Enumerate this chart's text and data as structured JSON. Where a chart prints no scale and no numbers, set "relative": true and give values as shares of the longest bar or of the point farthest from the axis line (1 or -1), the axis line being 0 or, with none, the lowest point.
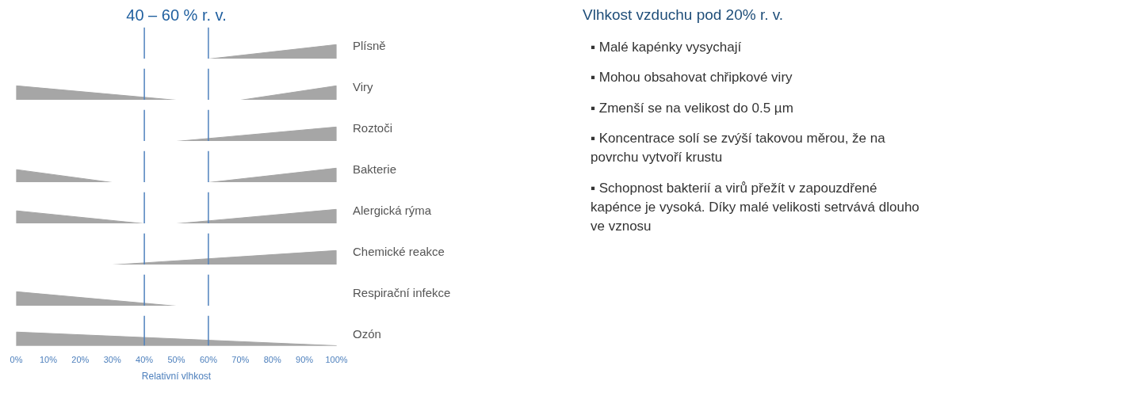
{
  "chart_data": [
    {
      "type": "area",
      "relative": true,
      "title": "40 – 60 % r. v.",
      "xlim": [
        0,
        100
      ],
      "tick_labels": false,
      "ref_lines": [
        {
          "axis": "x",
          "value": 40,
          "color": "#4f81bd"
        },
        {
          "axis": "x",
          "value": 60,
          "color": "#4f81bd"
        }
      ],
      "series": [
        {
          "name": "Plísně",
          "color": "#a6a6a6",
          "x": [
            0,
            60,
            100
          ],
          "values": [
            0,
            0,
            1
          ]
        }
      ]
    },
    {
      "type": "area",
      "relative": true,
      "xlim": [
        0,
        100
      ],
      "tick_labels": false,
      "ref_lines": [
        {
          "axis": "x",
          "value": 40,
          "color": "#4f81bd"
        },
        {
          "axis": "x",
          "value": 60,
          "color": "#4f81bd"
        }
      ],
      "series": [
        {
          "name": "Viry",
          "color": "#a6a6a6",
          "x": [
            0,
            50,
            70,
            100
          ],
          "values": [
            1,
            0,
            0,
            1
          ]
        }
      ]
    },
    {
      "type": "area",
      "relative": true,
      "xlim": [
        0,
        100
      ],
      "tick_labels": false,
      "ref_lines": [
        {
          "axis": "x",
          "value": 40,
          "color": "#4f81bd"
        },
        {
          "axis": "x",
          "value": 60,
          "color": "#4f81bd"
        }
      ],
      "series": [
        {
          "name": "Roztoči",
          "color": "#a6a6a6",
          "x": [
            0,
            50,
            100
          ],
          "values": [
            0,
            0,
            1
          ]
        }
      ]
    },
    {
      "type": "area",
      "relative": true,
      "xlim": [
        0,
        100
      ],
      "tick_labels": false,
      "ref_lines": [
        {
          "axis": "x",
          "value": 40,
          "color": "#4f81bd"
        },
        {
          "axis": "x",
          "value": 60,
          "color": "#4f81bd"
        }
      ],
      "series": [
        {
          "name": "Bakterie",
          "color": "#a6a6a6",
          "x": [
            0,
            30,
            60,
            100
          ],
          "values": [
            0.9,
            0,
            0,
            1
          ]
        }
      ]
    },
    {
      "type": "area",
      "relative": true,
      "xlim": [
        0,
        100
      ],
      "tick_labels": false,
      "ref_lines": [
        {
          "axis": "x",
          "value": 40,
          "color": "#4f81bd"
        },
        {
          "axis": "x",
          "value": 60,
          "color": "#4f81bd"
        }
      ],
      "series": [
        {
          "name": "Alergická rýma",
          "color": "#a6a6a6",
          "x": [
            0,
            40,
            50,
            100
          ],
          "values": [
            0.9,
            0,
            0,
            1
          ]
        }
      ]
    },
    {
      "type": "area",
      "relative": true,
      "xlim": [
        0,
        100
      ],
      "tick_labels": false,
      "ref_lines": [
        {
          "axis": "x",
          "value": 40,
          "color": "#4f81bd"
        },
        {
          "axis": "x",
          "value": 60,
          "color": "#4f81bd"
        }
      ],
      "series": [
        {
          "name": "Chemické reakce",
          "color": "#a6a6a6",
          "x": [
            0,
            30,
            100
          ],
          "values": [
            0,
            0,
            1
          ]
        }
      ]
    },
    {
      "type": "area",
      "relative": true,
      "xlim": [
        0,
        100
      ],
      "tick_labels": false,
      "ref_lines": [
        {
          "axis": "x",
          "value": 40,
          "color": "#4f81bd"
        },
        {
          "axis": "x",
          "value": 60,
          "color": "#4f81bd"
        }
      ],
      "series": [
        {
          "name": "Respirační infekce",
          "color": "#a6a6a6",
          "x": [
            0,
            50,
            100
          ],
          "values": [
            1,
            0,
            0
          ]
        }
      ]
    },
    {
      "type": "area",
      "relative": true,
      "xlim": [
        0,
        100
      ],
      "tick_labels": "x",
      "xlabel": "Relativní vlhkost",
      "ref_lines": [
        {
          "axis": "x",
          "value": 40,
          "color": "#4f81bd"
        },
        {
          "axis": "x",
          "value": 60,
          "color": "#4f81bd"
        }
      ],
      "xticks": [
        {
          "value": 0,
          "label": "0%"
        },
        {
          "value": 10,
          "label": "10%"
        },
        {
          "value": 20,
          "label": "20%"
        },
        {
          "value": 30,
          "label": "30%"
        },
        {
          "value": 40,
          "label": "40%"
        },
        {
          "value": 50,
          "label": "50%"
        },
        {
          "value": 60,
          "label": "60%"
        },
        {
          "value": 70,
          "label": "70%"
        },
        {
          "value": 80,
          "label": "80%"
        },
        {
          "value": 90,
          "label": "90%"
        },
        {
          "value": 100,
          "label": "100%"
        }
      ],
      "series": [
        {
          "name": "Ozón",
          "color": "#a6a6a6",
          "x": [
            0,
            100
          ],
          "values": [
            1,
            0
          ]
        }
      ]
    },
    {
      "type": "other",
      "title": "Vlhkost vzduchu pod 20% r. v.",
      "annotations": [
        "▪ Malé kapénky vysychají",
        "▪ Mohou obsahovat chřipkové viry",
        "▪ Zmenší se na velikost do 0.5 µm",
        "▪ Koncentrace solí se zvýší takovou měrou, že na povrchu vytvoří krustu",
        "▪ Schopnost bakterií a virů přežít v zapouzdřené kapénce je vysoká. Díky malé velikosti setrvává dlouho ve vznosu"
      ]
    }
  ]
}
